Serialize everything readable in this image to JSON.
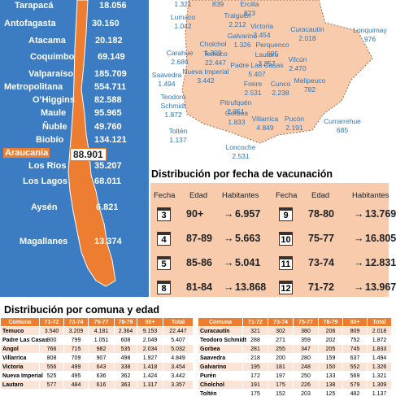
{
  "regions": [
    {
      "name": "Tarapacá",
      "value": "18.056"
    },
    {
      "name": "Antofagasta",
      "value": "30.160"
    },
    {
      "name": "Atacama",
      "value": "20.182"
    },
    {
      "name": "Coquimbo",
      "value": "69.149"
    },
    {
      "name": "Valparaíso",
      "value": "185.709"
    },
    {
      "name": "Metropolitana",
      "value": "554.711"
    },
    {
      "name": "O’Higgins",
      "value": "82.588"
    },
    {
      "name": "Maule",
      "value": "95.965"
    },
    {
      "name": "Ñuble",
      "value": "49.760"
    },
    {
      "name": "Biobío",
      "value": "134.121"
    },
    {
      "name": "Araucanía",
      "value": "88.901"
    },
    {
      "name": "Los Ríos",
      "value": "35.207"
    },
    {
      "name": "Los Lagos",
      "value": "68.011"
    },
    {
      "name": "Aysén",
      "value": "6.821"
    },
    {
      "name": "Magallanes",
      "value": "13.374"
    }
  ],
  "commune_map": [
    {
      "value": "1.321"
    },
    {
      "value": "839"
    },
    {
      "name": "Ercilla",
      "value": "823"
    },
    {
      "name": "Lumaco",
      "value": "1.042"
    },
    {
      "name": "Traiguén",
      "value": "2.212"
    },
    {
      "name": "Victoria",
      "value": "3.454"
    },
    {
      "name": "Galvarino",
      "value": "1.326"
    },
    {
      "name": "Cholchol",
      "value": "1.309"
    },
    {
      "name": "Curacautín",
      "value": "2.018"
    },
    {
      "name": "Lonquimay",
      "value": "976"
    },
    {
      "name": "Perquenco",
      "value": "695"
    },
    {
      "name": "Carahue",
      "value": "2.686"
    },
    {
      "name": "Temuco",
      "value": "22.447"
    },
    {
      "name": "Lautaro",
      "value": "3.357"
    },
    {
      "name": "Vilcún",
      "value": "2.470"
    },
    {
      "name": "Padre Las Casas",
      "value": "5.407"
    },
    {
      "name": "Nueva Imperial",
      "value": "3.442"
    },
    {
      "name": "Saavedra",
      "value": "1.494"
    },
    {
      "name": "Melipeuco",
      "value": "782"
    },
    {
      "name": "Freire",
      "value": "2.531"
    },
    {
      "name": "Cunco",
      "value": "2.238"
    },
    {
      "name": "Teodoro Schmidt",
      "value": "1.872"
    },
    {
      "name": "Pitrufquén",
      "value": "2.851"
    },
    {
      "name": "Gorbea",
      "value": "1.833"
    },
    {
      "name": "Villarrica",
      "value": "4.849"
    },
    {
      "name": "Pucón",
      "value": "2.191"
    },
    {
      "name": "Currarrehue",
      "value": "685"
    },
    {
      "name": "Toltén",
      "value": "1.137"
    },
    {
      "name": "Loncoche",
      "value": "2.531"
    }
  ],
  "schedule": {
    "title": "Distribución por fecha de vacunación",
    "headers": [
      "Fecha",
      "Edad",
      "Habitantes"
    ],
    "left_rows": [
      [
        "3",
        "90+",
        "6.957"
      ],
      [
        "4",
        "87-89",
        "5.663"
      ],
      [
        "5",
        "85-86",
        "5.041"
      ],
      [
        "8",
        "81-84",
        "13.868"
      ]
    ],
    "right_rows": [
      [
        "9",
        "78-80",
        "13.769"
      ],
      [
        "10",
        "75-77",
        "16.805"
      ],
      [
        "11",
        "73-74",
        "12.831"
      ],
      [
        "12",
        "71-72",
        "13.967"
      ]
    ]
  },
  "tables": {
    "title": "Distribución por comuna y edad",
    "columns": [
      "Comuna",
      "71-72",
      "73-74",
      "75-77",
      "78-79",
      "80+",
      "Total"
    ],
    "left": [
      [
        "Temuco",
        "3.540",
        "3.209",
        "4.181",
        "2.364",
        "9.153",
        "22.447"
      ],
      [
        "Padre Las Casas",
        "900",
        "799",
        "1.051",
        "608",
        "2.049",
        "5.407"
      ],
      [
        "Angol",
        "766",
        "715",
        "982",
        "535",
        "2.034",
        "5.032"
      ],
      [
        "Villarrica",
        "808",
        "709",
        "907",
        "498",
        "1.927",
        "4.849"
      ],
      [
        "Victoria",
        "556",
        "499",
        "643",
        "338",
        "1.418",
        "3.454"
      ],
      [
        "Nueva Imperial",
        "525",
        "495",
        "636",
        "362",
        "1.424",
        "3.442"
      ],
      [
        "Lautaro",
        "577",
        "484",
        "616",
        "363",
        "1.317",
        "3.357"
      ]
    ],
    "right": [
      [
        "Curacautín",
        "321",
        "302",
        "380",
        "206",
        "809",
        "2.018"
      ],
      [
        "Teodoro Schmidt",
        "288",
        "271",
        "359",
        "202",
        "752",
        "1.872"
      ],
      [
        "Gorbea",
        "281",
        "255",
        "347",
        "205",
        "745",
        "1.833"
      ],
      [
        "Saavedra",
        "218",
        "200",
        "280",
        "159",
        "637",
        "1.494"
      ],
      [
        "Galvarino",
        "195",
        "181",
        "248",
        "150",
        "552",
        "1.326"
      ],
      [
        "Purén",
        "172",
        "197",
        "250",
        "133",
        "569",
        "1.321"
      ],
      [
        "Cholchol",
        "191",
        "175",
        "226",
        "138",
        "579",
        "1.309"
      ],
      [
        "Toltén",
        "175",
        "152",
        "203",
        "125",
        "482",
        "1.137"
      ]
    ]
  }
}
